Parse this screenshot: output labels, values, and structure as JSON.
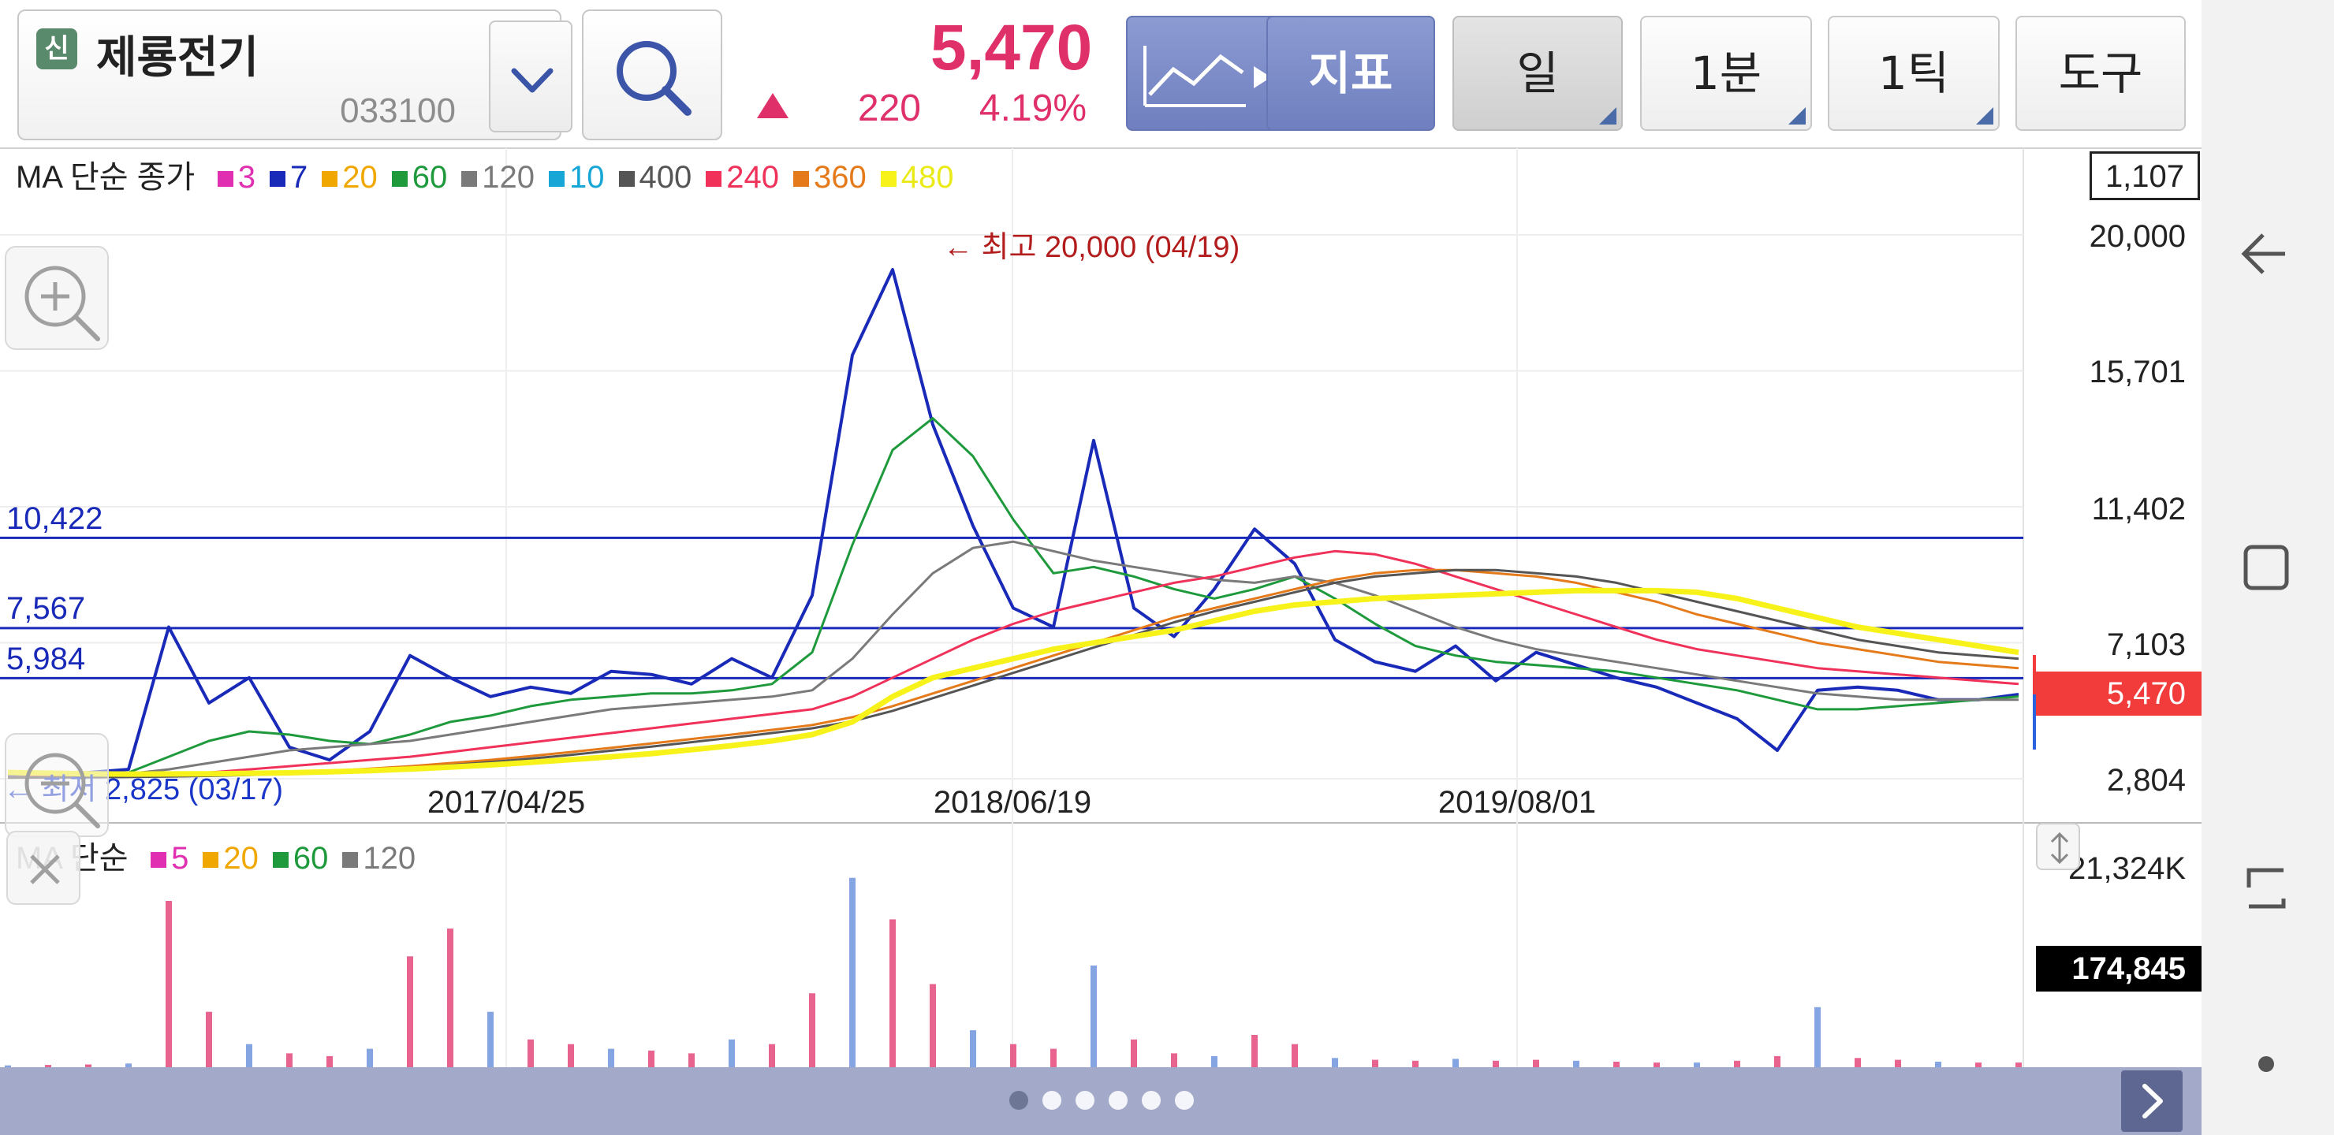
{
  "header": {
    "badge": "신",
    "stock_name": "제룡전기",
    "stock_code": "033100",
    "price": "5,470",
    "change": "220",
    "change_pct": "4.19%",
    "buttons": {
      "indicator": "지표",
      "period_day": "일",
      "minute": "1분",
      "tick": "1틱",
      "tools": "도구"
    }
  },
  "legend_price": {
    "title": "MA 단순 종가",
    "items": [
      {
        "label": "3",
        "color": "#e02fb0"
      },
      {
        "label": "7",
        "color": "#1a2ab8"
      },
      {
        "label": "20",
        "color": "#f0a800"
      },
      {
        "label": "60",
        "color": "#1e9a3c"
      },
      {
        "label": "120",
        "color": "#7a7a7a"
      },
      {
        "label": "10",
        "color": "#18a6d6"
      },
      {
        "label": "400",
        "color": "#555555"
      },
      {
        "label": "240",
        "color": "#f0325a"
      },
      {
        "label": "360",
        "color": "#e57a1a"
      },
      {
        "label": "480",
        "color": "#f7f21a"
      }
    ]
  },
  "legend_volume": {
    "title": "MA 단순",
    "items": [
      {
        "label": "5",
        "color": "#e02fb0"
      },
      {
        "label": "20",
        "color": "#f0a800"
      },
      {
        "label": "60",
        "color": "#1e9a3c"
      },
      {
        "label": "120",
        "color": "#7a7a7a"
      }
    ]
  },
  "labels": {
    "count_box": "1,107",
    "current_price_tag": "5,470",
    "volume_tag": "174,845",
    "max_annotation": "← 최고 20,000 (04/19)",
    "min_annotation": "← 최저 2,825 (03/17)"
  },
  "colors": {
    "up": "#e0306a",
    "price_tag": "#f23c3c",
    "hline": "#1a2ab8",
    "bottom_bar": "#a3aac9"
  },
  "chart_data": [
    {
      "type": "line",
      "name": "price",
      "y_ticks": [
        "20,000",
        "15,701",
        "11,402",
        "7,103",
        "2,804"
      ],
      "x_ticks": [
        "2017/04/25",
        "2018/06/19",
        "2019/08/01"
      ],
      "horizontal_lines": [
        {
          "label": "10,422",
          "value": 10422
        },
        {
          "label": "7,567",
          "value": 7567
        },
        {
          "label": "5,984",
          "value": 5984
        }
      ],
      "ylim": [
        2804,
        20000
      ],
      "max": {
        "value": 20000,
        "date": "04/19"
      },
      "min": {
        "value": 2825,
        "date": "03/17"
      },
      "last": 5470,
      "series": [
        {
          "name": "7",
          "color": "#1a2ab8",
          "values": [
            2900,
            2950,
            3000,
            3100,
            7600,
            5200,
            6000,
            3800,
            3400,
            4300,
            6700,
            6000,
            5400,
            5700,
            5500,
            6200,
            6100,
            5800,
            6600,
            6000,
            8600,
            16200,
            18900,
            14000,
            10800,
            8200,
            7600,
            13500,
            8200,
            7300,
            8800,
            10700,
            9600,
            7200,
            6500,
            6200,
            7000,
            5900,
            6800,
            6400,
            6000,
            5700,
            5200,
            4700,
            3700,
            5600,
            5700,
            5600,
            5300,
            5300,
            5470
          ]
        },
        {
          "name": "60",
          "color": "#1e9a3c",
          "values": [
            2850,
            2900,
            2950,
            3000,
            3500,
            4000,
            4300,
            4200,
            4000,
            3900,
            4200,
            4600,
            4800,
            5100,
            5300,
            5400,
            5500,
            5500,
            5600,
            5800,
            6800,
            10200,
            13200,
            14200,
            13000,
            11000,
            9300,
            9500,
            9200,
            8800,
            8500,
            8800,
            9200,
            8500,
            7700,
            7000,
            6700,
            6500,
            6400,
            6300,
            6200,
            6000,
            5800,
            5600,
            5300,
            5000,
            5000,
            5100,
            5200,
            5300,
            5400
          ]
        },
        {
          "name": "120",
          "color": "#7a7a7a",
          "values": [
            2850,
            2880,
            2920,
            2960,
            3100,
            3300,
            3500,
            3700,
            3800,
            3900,
            4000,
            4200,
            4400,
            4600,
            4800,
            5000,
            5100,
            5200,
            5300,
            5400,
            5600,
            6600,
            8000,
            9300,
            10100,
            10300,
            10000,
            9700,
            9500,
            9300,
            9100,
            9000,
            9200,
            9000,
            8600,
            8100,
            7600,
            7200,
            6900,
            6700,
            6500,
            6300,
            6100,
            5900,
            5700,
            5500,
            5400,
            5300,
            5300,
            5300,
            5300
          ]
        },
        {
          "name": "240",
          "color": "#f0325a",
          "values": [
            2850,
            2860,
            2880,
            2900,
            2950,
            3000,
            3100,
            3200,
            3300,
            3400,
            3500,
            3650,
            3800,
            3950,
            4100,
            4250,
            4400,
            4550,
            4700,
            4850,
            5000,
            5400,
            6000,
            6600,
            7200,
            7700,
            8100,
            8400,
            8700,
            9000,
            9200,
            9500,
            9800,
            10000,
            9900,
            9600,
            9200,
            8800,
            8400,
            8000,
            7600,
            7200,
            6900,
            6700,
            6500,
            6300,
            6200,
            6100,
            6000,
            5900,
            5800
          ]
        },
        {
          "name": "360",
          "color": "#e57a1a",
          "values": [
            2840,
            2845,
            2855,
            2865,
            2880,
            2900,
            2940,
            2990,
            3050,
            3120,
            3200,
            3300,
            3400,
            3520,
            3650,
            3780,
            3920,
            4060,
            4200,
            4350,
            4500,
            4750,
            5100,
            5500,
            5900,
            6300,
            6700,
            7100,
            7500,
            7900,
            8200,
            8500,
            8800,
            9100,
            9300,
            9400,
            9400,
            9300,
            9200,
            9000,
            8700,
            8400,
            8000,
            7700,
            7400,
            7100,
            6900,
            6700,
            6500,
            6400,
            6300
          ]
        },
        {
          "name": "400",
          "color": "#555555",
          "values": [
            2840,
            2845,
            2850,
            2860,
            2875,
            2890,
            2920,
            2960,
            3010,
            3070,
            3140,
            3230,
            3330,
            3440,
            3560,
            3690,
            3820,
            3960,
            4100,
            4250,
            4400,
            4620,
            4950,
            5350,
            5750,
            6150,
            6550,
            6950,
            7350,
            7750,
            8100,
            8400,
            8700,
            9000,
            9200,
            9300,
            9400,
            9400,
            9300,
            9200,
            9000,
            8700,
            8400,
            8100,
            7800,
            7500,
            7200,
            7000,
            6800,
            6700,
            6600
          ]
        },
        {
          "name": "480",
          "color": "#f7f21a",
          "values": [
            3000,
            2980,
            2960,
            2950,
            2955,
            2960,
            2975,
            2990,
            3020,
            3060,
            3110,
            3170,
            3240,
            3320,
            3410,
            3500,
            3600,
            3720,
            3850,
            4000,
            4200,
            4600,
            5400,
            6000,
            6300,
            6600,
            6900,
            7100,
            7300,
            7500,
            7800,
            8100,
            8300,
            8400,
            8500,
            8550,
            8600,
            8650,
            8700,
            8750,
            8750,
            8750,
            8700,
            8500,
            8200,
            7900,
            7600,
            7400,
            7200,
            7000,
            6800
          ]
        }
      ]
    },
    {
      "type": "bar",
      "name": "volume",
      "y_ticks": [
        "21,324K"
      ],
      "ylim": [
        0,
        21324
      ],
      "last": 174845,
      "values_k": [
        200,
        250,
        300,
        400,
        18000,
        6000,
        2500,
        1500,
        1200,
        2000,
        12000,
        15000,
        6000,
        3000,
        2500,
        2000,
        1800,
        1500,
        3000,
        2500,
        8000,
        20500,
        16000,
        9000,
        4000,
        2500,
        2000,
        11000,
        3000,
        1500,
        1200,
        3500,
        2500,
        1000,
        800,
        700,
        900,
        700,
        800,
        700,
        600,
        500,
        500,
        700,
        1200,
        6500,
        1000,
        800,
        600,
        500,
        500
      ]
    }
  ]
}
